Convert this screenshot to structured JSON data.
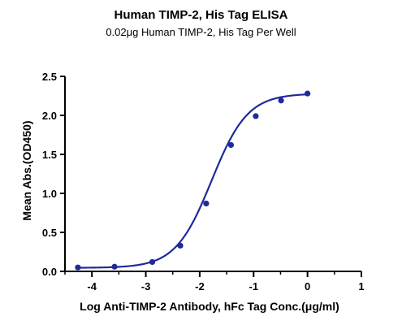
{
  "chart_data": {
    "type": "scatter",
    "title": "Human TIMP-2, His Tag ELISA",
    "subtitle": "0.02μg Human TIMP-2, His Tag Per Well",
    "xlabel": "Log  Anti-TIMP-2 Antibody, hFc Tag Conc.(μg/ml)",
    "ylabel": "Mean Abs.(OD450)",
    "xlim": [
      -4.5,
      1
    ],
    "ylim": [
      0,
      2.5
    ],
    "x_ticks": [
      "-4",
      "-3",
      "-2",
      "-1",
      "0",
      "1"
    ],
    "y_ticks": [
      "0.0",
      "0.5",
      "1.0",
      "1.5",
      "2.0",
      "2.5"
    ],
    "grid": false,
    "series": [
      {
        "color": "#1f2a9b",
        "points": [
          {
            "x": -4.26,
            "y": 0.05
          },
          {
            "x": -3.58,
            "y": 0.06
          },
          {
            "x": -2.88,
            "y": 0.12
          },
          {
            "x": -2.36,
            "y": 0.33
          },
          {
            "x": -1.88,
            "y": 0.87
          },
          {
            "x": -1.42,
            "y": 1.62
          },
          {
            "x": -0.96,
            "y": 1.99
          },
          {
            "x": -0.49,
            "y": 2.19
          },
          {
            "x": 0.0,
            "y": 2.28
          }
        ],
        "fit": {
          "bottom": 0.045,
          "top": 2.28,
          "logEC50": -1.78,
          "hill": 1.3
        }
      }
    ]
  }
}
